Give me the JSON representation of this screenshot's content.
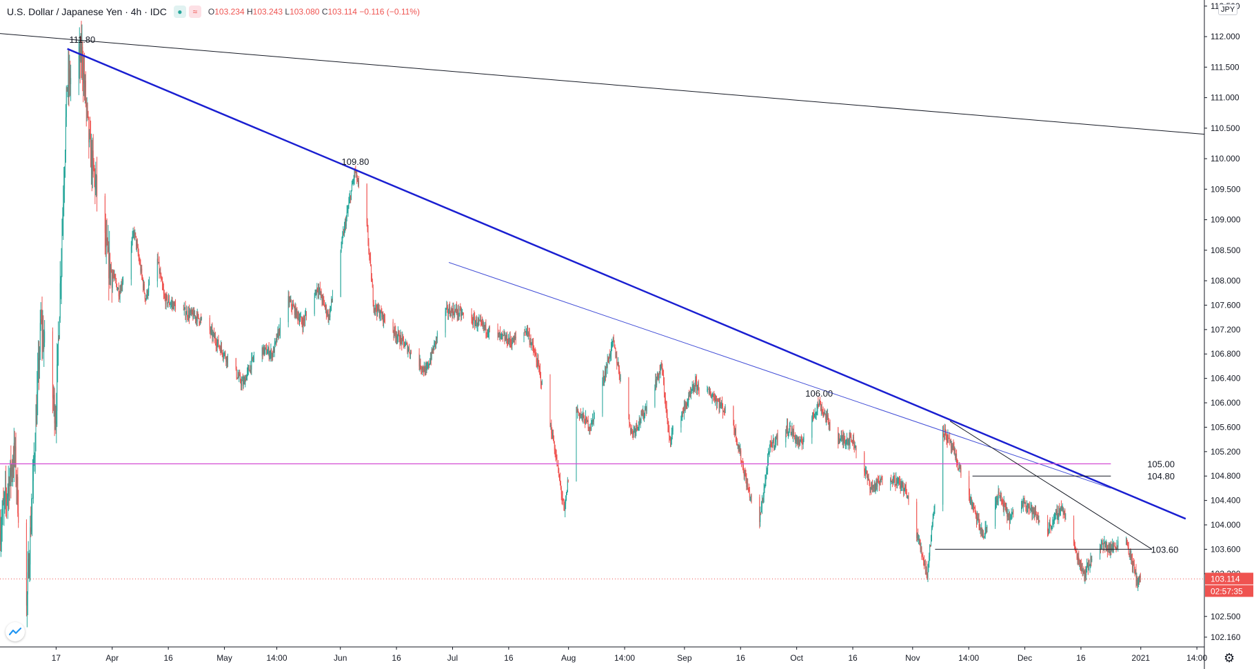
{
  "header": {
    "symbol_title": "U.S. Dollar / Japanese Yen · 4h · IDC",
    "open_label": "O",
    "open": "103.234",
    "high_label": "H",
    "high": "103.243",
    "low_label": "L",
    "low": "103.080",
    "close_label": "C",
    "close": "103.114",
    "change": "−0.116 (−0.11%)"
  },
  "currency_button": "JPY",
  "last_price": {
    "value": "103.114",
    "countdown": "02:57:35"
  },
  "colors": {
    "up": "#26a69a",
    "down": "#ef5350",
    "main_trendline": "#1a1fd1",
    "secondary_trendline": "#3f4bd6",
    "level_105": "#d24cd2",
    "black_lines": "#131722",
    "last_price": "#ef5350"
  },
  "icons": [
    "eye-icon",
    "wave-icon",
    "tradingview-logo-icon",
    "gear-icon"
  ],
  "chart_data": {
    "type": "candlestick",
    "symbol": "USDJPY",
    "interval": "4h",
    "ylim": [
      102.0,
      112.6
    ],
    "y_ticks": [
      "112.500",
      "112.000",
      "111.500",
      "111.000",
      "110.500",
      "110.000",
      "109.500",
      "109.000",
      "108.500",
      "108.000",
      "107.600",
      "107.200",
      "106.800",
      "106.400",
      "106.000",
      "105.600",
      "105.200",
      "104.800",
      "104.400",
      "104.000",
      "103.600",
      "103.200",
      "102.500",
      "102.160"
    ],
    "x_ticks": [
      "17",
      "Apr",
      "16",
      "May",
      "14:00",
      "Jun",
      "16",
      "Jul",
      "16",
      "Aug",
      "14:00",
      "Sep",
      "16",
      "Oct",
      "16",
      "Nov",
      "14:00",
      "Dec",
      "16",
      "2021",
      "14:00"
    ],
    "x_tick_dates": [
      "2020-03-17",
      "2020-04-01",
      "2020-04-16",
      "2020-05-01",
      "2020-05-15",
      "2020-06-01",
      "2020-06-16",
      "2020-07-01",
      "2020-07-16",
      "2020-08-01",
      "2020-08-16",
      "2020-09-01",
      "2020-09-16",
      "2020-10-01",
      "2020-10-16",
      "2020-11-01",
      "2020-11-16",
      "2020-12-01",
      "2020-12-16",
      "2021-01-01",
      "2021-01-16"
    ],
    "date_range": [
      "2020-03-02",
      "2021-01-18"
    ],
    "price_path": [
      [
        "2020-03-02",
        103.9
      ],
      [
        "2020-03-06",
        105.2
      ],
      [
        "2020-03-09",
        102.4
      ],
      [
        "2020-03-13",
        107.3
      ],
      [
        "2020-03-17",
        105.8
      ],
      [
        "2020-03-20",
        111.2
      ],
      [
        "2020-03-24",
        111.7
      ],
      [
        "2020-03-26",
        110.2
      ],
      [
        "2020-03-31",
        108.3
      ],
      [
        "2020-04-03",
        107.8
      ],
      [
        "2020-04-07",
        108.8
      ],
      [
        "2020-04-10",
        107.7
      ],
      [
        "2020-04-13",
        108.4
      ],
      [
        "2020-04-15",
        107.7
      ],
      [
        "2020-04-20",
        107.5
      ],
      [
        "2020-04-24",
        107.4
      ],
      [
        "2020-04-27",
        107.2
      ],
      [
        "2020-05-01",
        106.8
      ],
      [
        "2020-05-06",
        106.3
      ],
      [
        "2020-05-10",
        106.9
      ],
      [
        "2020-05-14",
        106.8
      ],
      [
        "2020-05-18",
        107.7
      ],
      [
        "2020-05-22",
        107.3
      ],
      [
        "2020-05-26",
        107.9
      ],
      [
        "2020-05-29",
        107.4
      ],
      [
        "2020-06-02",
        108.8
      ],
      [
        "2020-06-05",
        109.8
      ],
      [
        "2020-06-08",
        109.0
      ],
      [
        "2020-06-10",
        107.6
      ],
      [
        "2020-06-15",
        107.2
      ],
      [
        "2020-06-19",
        106.9
      ],
      [
        "2020-06-24",
        106.5
      ],
      [
        "2020-06-29",
        107.5
      ],
      [
        "2020-07-02",
        107.5
      ],
      [
        "2020-07-08",
        107.3
      ],
      [
        "2020-07-13",
        107.1
      ],
      [
        "2020-07-17",
        107.0
      ],
      [
        "2020-07-21",
        107.2
      ],
      [
        "2020-07-24",
        106.6
      ],
      [
        "2020-07-28",
        105.4
      ],
      [
        "2020-07-31",
        104.2
      ],
      [
        "2020-08-03",
        105.9
      ],
      [
        "2020-08-07",
        105.6
      ],
      [
        "2020-08-13",
        107.0
      ],
      [
        "2020-08-18",
        105.5
      ],
      [
        "2020-08-21",
        105.8
      ],
      [
        "2020-08-26",
        106.6
      ],
      [
        "2020-08-28",
        105.4
      ],
      [
        "2020-09-01",
        105.9
      ],
      [
        "2020-09-04",
        106.3
      ],
      [
        "2020-09-09",
        106.1
      ],
      [
        "2020-09-14",
        105.7
      ],
      [
        "2020-09-18",
        104.6
      ],
      [
        "2020-09-21",
        104.0
      ],
      [
        "2020-09-24",
        105.3
      ],
      [
        "2020-09-29",
        105.6
      ],
      [
        "2020-10-02",
        105.3
      ],
      [
        "2020-10-07",
        106.0
      ],
      [
        "2020-10-12",
        105.4
      ],
      [
        "2020-10-16",
        105.4
      ],
      [
        "2020-10-21",
        104.6
      ],
      [
        "2020-10-26",
        104.8
      ],
      [
        "2020-10-30",
        104.6
      ],
      [
        "2020-11-05",
        103.2
      ],
      [
        "2020-11-09",
        105.6
      ],
      [
        "2020-11-12",
        105.2
      ],
      [
        "2020-11-16",
        104.5
      ],
      [
        "2020-11-20",
        103.8
      ],
      [
        "2020-11-24",
        104.5
      ],
      [
        "2020-11-27",
        104.1
      ],
      [
        "2020-12-01",
        104.4
      ],
      [
        "2020-12-07",
        103.9
      ],
      [
        "2020-12-11",
        104.3
      ],
      [
        "2020-12-15",
        103.5
      ],
      [
        "2020-12-17",
        103.2
      ],
      [
        "2020-12-21",
        103.7
      ],
      [
        "2020-12-24",
        103.6
      ],
      [
        "2020-12-28",
        103.8
      ],
      [
        "2020-12-31",
        103.1
      ]
    ],
    "annotations": [
      {
        "label": "111.80",
        "date": "2020-03-24",
        "price": 111.8
      },
      {
        "label": "109.80",
        "date": "2020-06-05",
        "price": 109.8
      },
      {
        "label": "106.00",
        "date": "2020-10-07",
        "price": 106.0
      },
      {
        "label": "105.00",
        "date": "2021-01-02",
        "price": 105.0
      },
      {
        "label": "104.80",
        "date": "2021-01-02",
        "price": 104.8
      },
      {
        "label": "103.60",
        "date": "2021-01-03",
        "price": 103.6
      }
    ],
    "lines": [
      {
        "id": "long-term-trendline",
        "style": "thin-black",
        "from": [
          "2020-03-02",
          112.05
        ],
        "to": [
          "2021-01-18",
          110.4
        ]
      },
      {
        "id": "main-trendline",
        "style": "thick-blue",
        "from": [
          "2020-03-20",
          111.8
        ],
        "to": [
          "2021-01-13",
          104.1
        ]
      },
      {
        "id": "secondary-trendline",
        "style": "thin-blue",
        "from": [
          "2020-06-30",
          108.3
        ],
        "to": [
          "2020-12-24",
          104.6
        ]
      },
      {
        "id": "level-105",
        "style": "magenta-horizontal",
        "from": [
          "2020-03-02",
          105.0
        ],
        "to": [
          "2020-12-24",
          105.0
        ]
      },
      {
        "id": "level-104-80",
        "style": "thin-black-horizontal",
        "from": [
          "2020-11-17",
          104.8
        ],
        "to": [
          "2020-12-24",
          104.8
        ]
      },
      {
        "id": "level-103-60",
        "style": "thin-black-horizontal",
        "from": [
          "2020-11-07",
          103.6
        ],
        "to": [
          "2021-01-04",
          103.6
        ]
      },
      {
        "id": "wedge-upper",
        "style": "thin-black",
        "from": [
          "2020-11-11",
          105.7
        ],
        "to": [
          "2021-01-04",
          103.6
        ]
      },
      {
        "id": "last-price-line",
        "style": "dotted-red",
        "from": [
          "2020-03-02",
          103.114
        ],
        "to": [
          "2021-01-18",
          103.114
        ]
      }
    ]
  }
}
